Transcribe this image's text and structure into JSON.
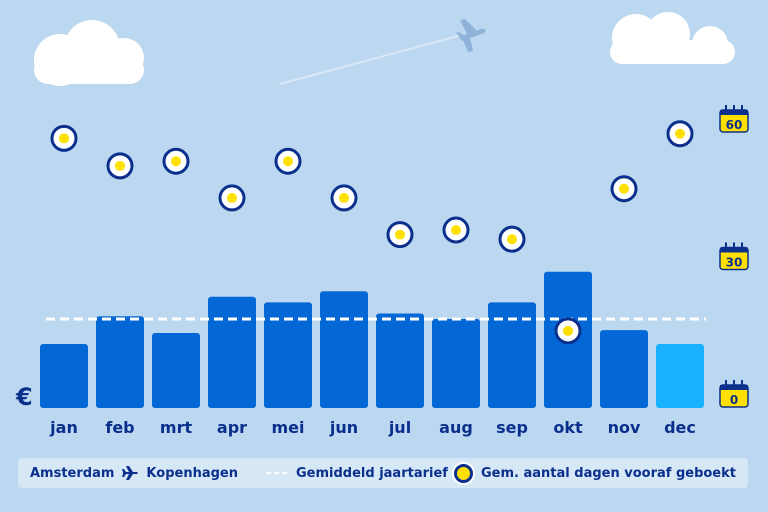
{
  "chart_data": {
    "type": "bar",
    "categories": [
      "jan",
      "feb",
      "mrt",
      "apr",
      "mei",
      "jun",
      "jul",
      "aug",
      "sep",
      "okt",
      "nov",
      "dec"
    ],
    "series": [
      {
        "name": "Amsterdam → Kopenhagen",
        "values": [
          63,
          73,
          67,
          80,
          78,
          82,
          74,
          72,
          78,
          89,
          68,
          63
        ]
      },
      {
        "name": "Gem. aantal dagen vooraf geboekt",
        "axis": "right",
        "values": [
          56,
          50,
          51,
          43,
          51,
          43,
          35,
          36,
          34,
          14,
          45,
          57
        ]
      }
    ],
    "average": {
      "name": "Gemiddeld jaartarief",
      "value": 72
    },
    "left_axis_label": "€",
    "right_axis": {
      "ticks": [
        "60",
        "30",
        "0"
      ],
      "range": [
        0,
        60
      ]
    },
    "colors": {
      "bar": "#0467d6",
      "bar_highlight": "#1ab2ff",
      "text": "#0a2f8c",
      "dot": "#ffe000",
      "background": "#bcd8f0"
    }
  },
  "legend": {
    "origin": "Amsterdam",
    "destination": "Kopenhagen",
    "average_label": "Gemiddeld jaartarief",
    "days_label": "Gem. aantal dagen vooraf geboekt"
  }
}
